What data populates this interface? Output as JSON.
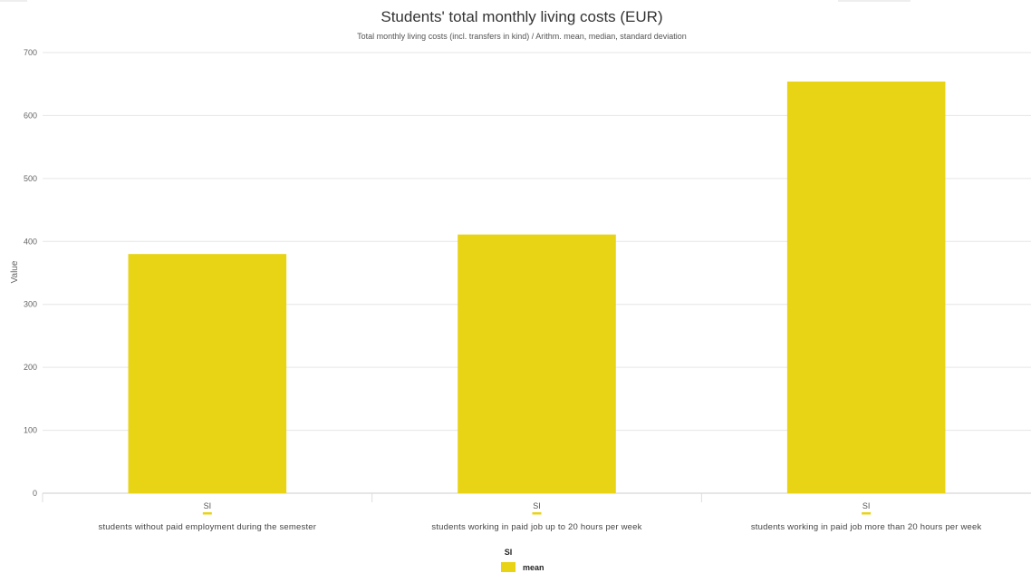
{
  "chart_data": {
    "type": "bar",
    "title": "Students' total monthly living costs (EUR)",
    "subtitle": "Total monthly living costs (incl. transfers in kind) / Arithm. mean, median, standard deviation",
    "xlabel": "",
    "ylabel": "Value",
    "ylim": [
      0,
      700
    ],
    "yticks": [
      0,
      100,
      200,
      300,
      400,
      500,
      600,
      700
    ],
    "grid": true,
    "legend_position": "bottom-center",
    "categories": [
      "students without paid employment during the semester",
      "students working in paid job up to 20 hours per week",
      "students working in paid job more than 20 hours per week"
    ],
    "group_label": "SI",
    "series": [
      {
        "name": "mean",
        "color": "#e8d315",
        "values": [
          380,
          411,
          654
        ]
      }
    ],
    "legend": {
      "title": "SI",
      "entries": [
        "mean"
      ]
    }
  }
}
